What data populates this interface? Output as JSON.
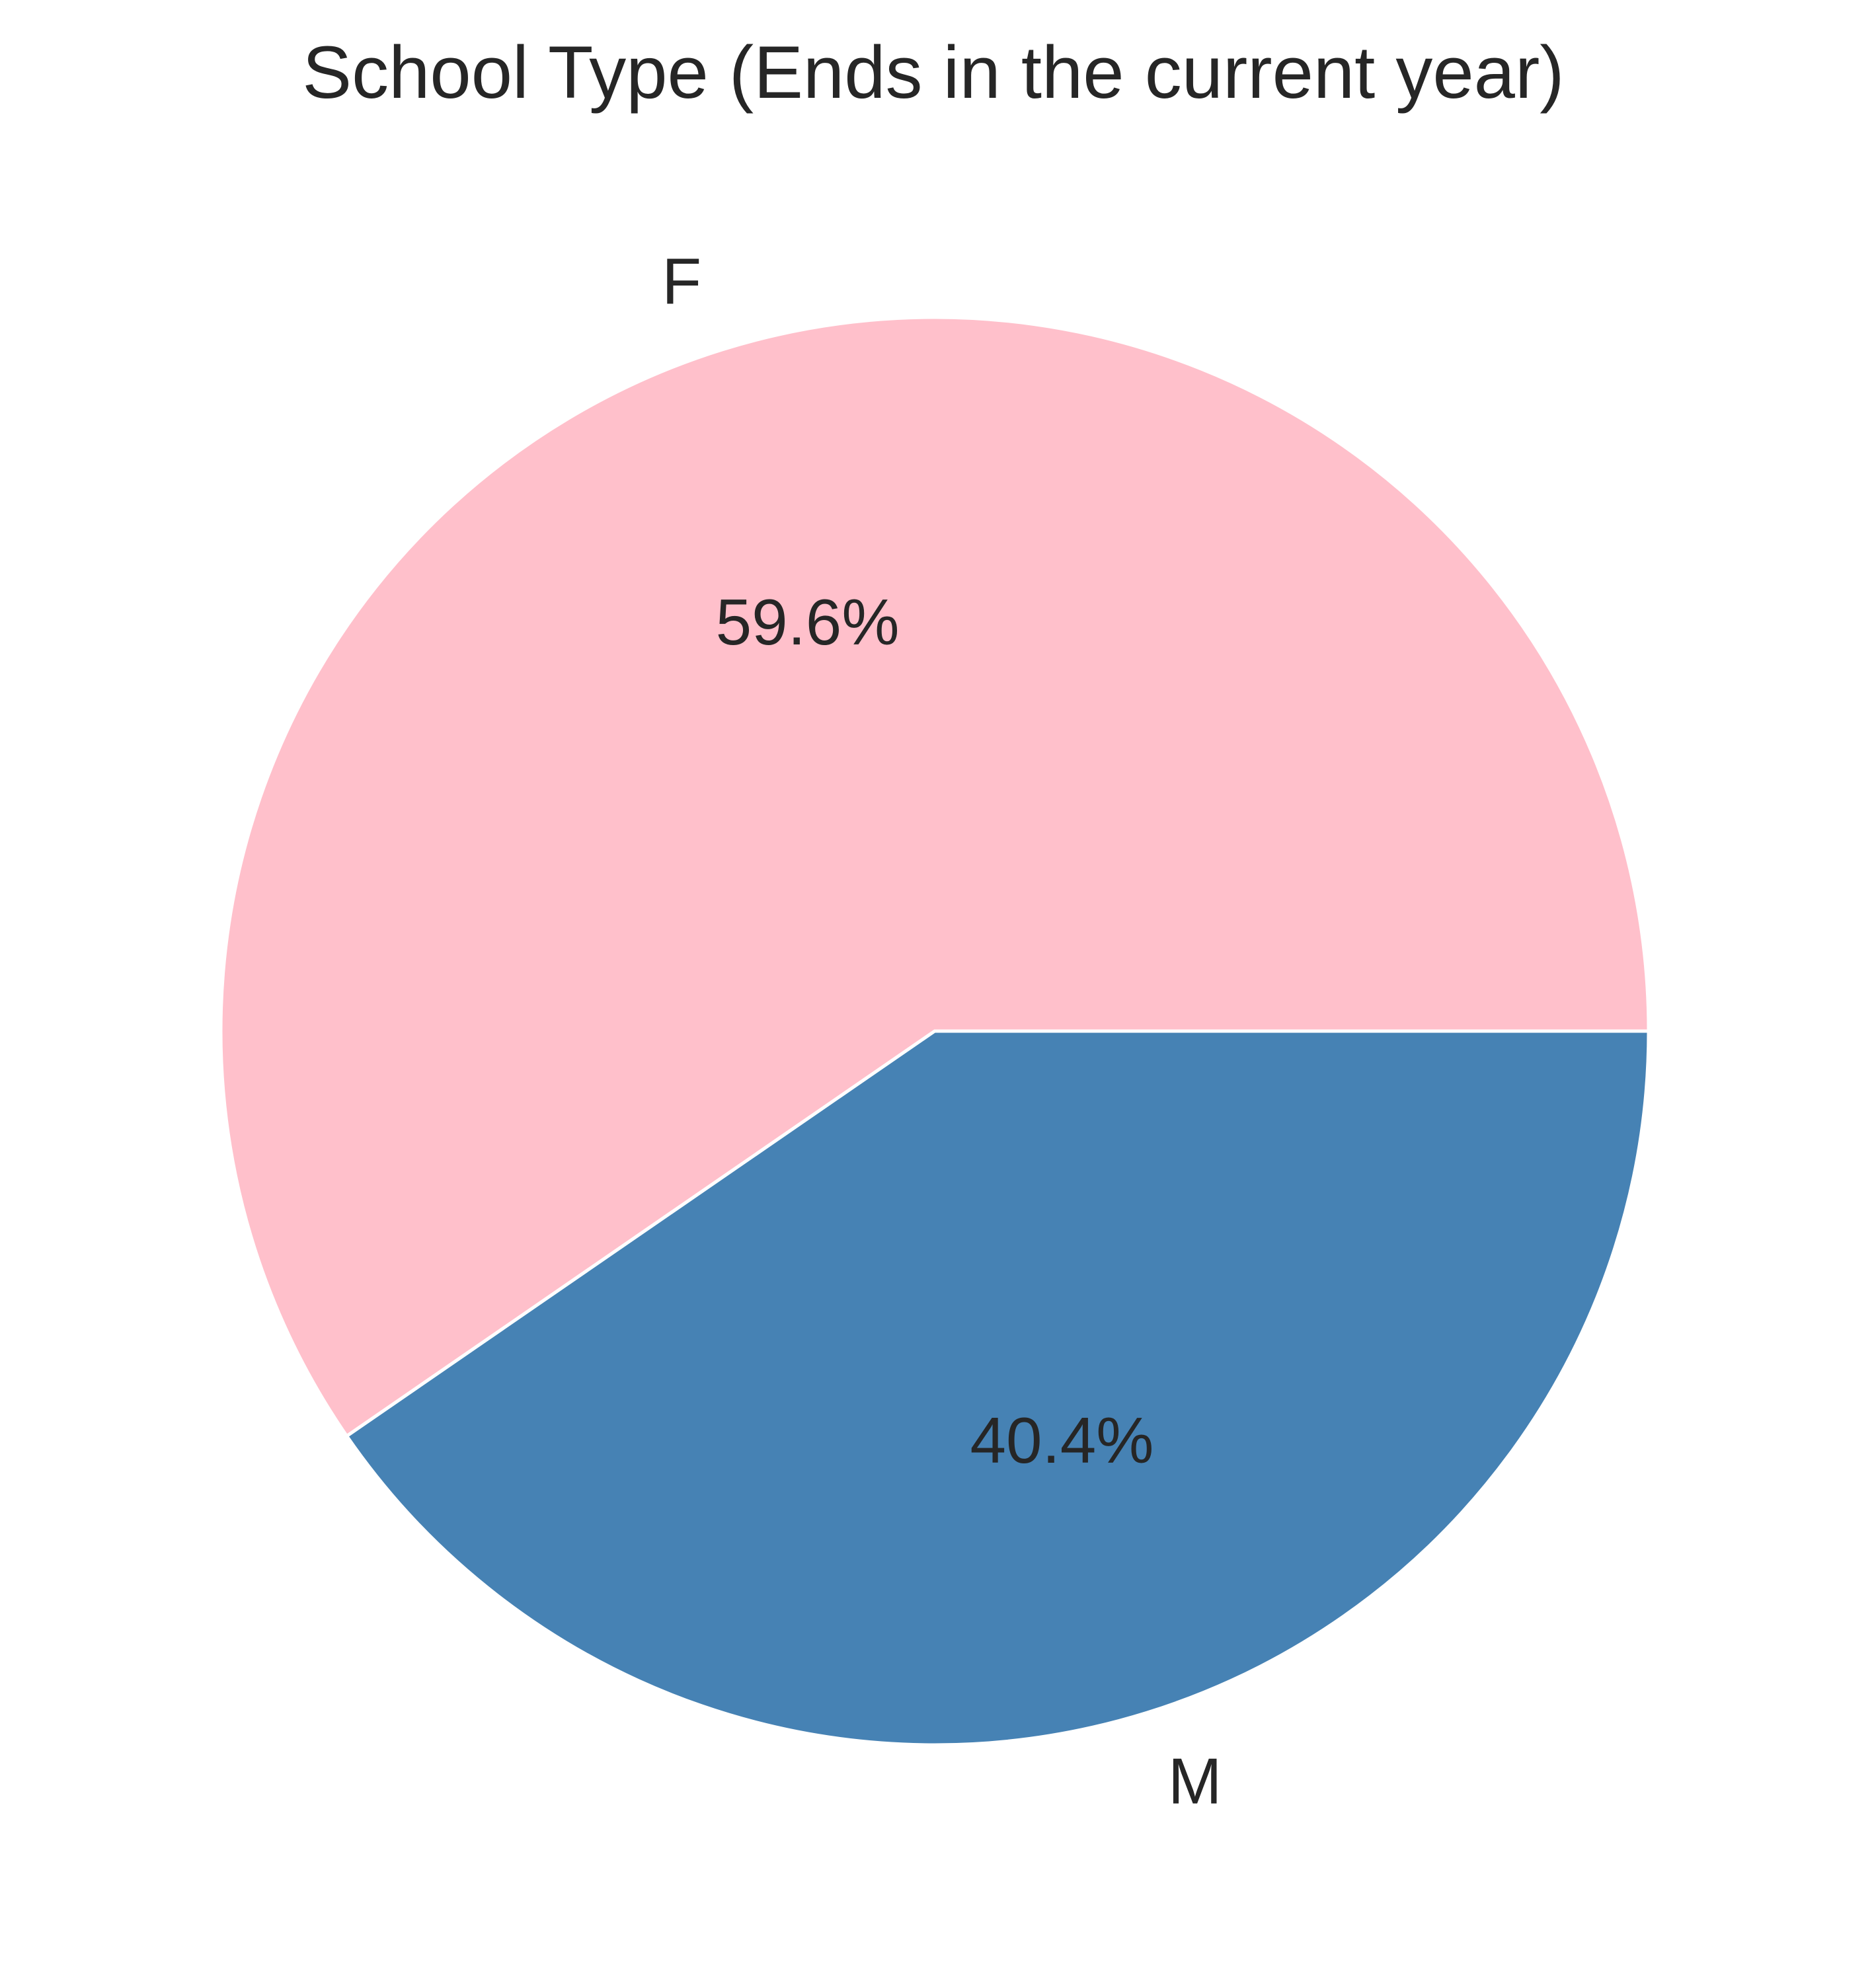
{
  "chart_data": {
    "type": "pie",
    "title": "School Type (Ends in the current year)",
    "slices": [
      {
        "label": "F",
        "value": 59.6,
        "pct_label": "59.6%",
        "color": "#ffc0cb"
      },
      {
        "label": "M",
        "value": 40.4,
        "pct_label": "40.4%",
        "color": "#4682b4"
      }
    ],
    "start_angle_deg": 0,
    "direction": "counterclockwise",
    "edge_color": "#ffffff",
    "legend": "none"
  }
}
